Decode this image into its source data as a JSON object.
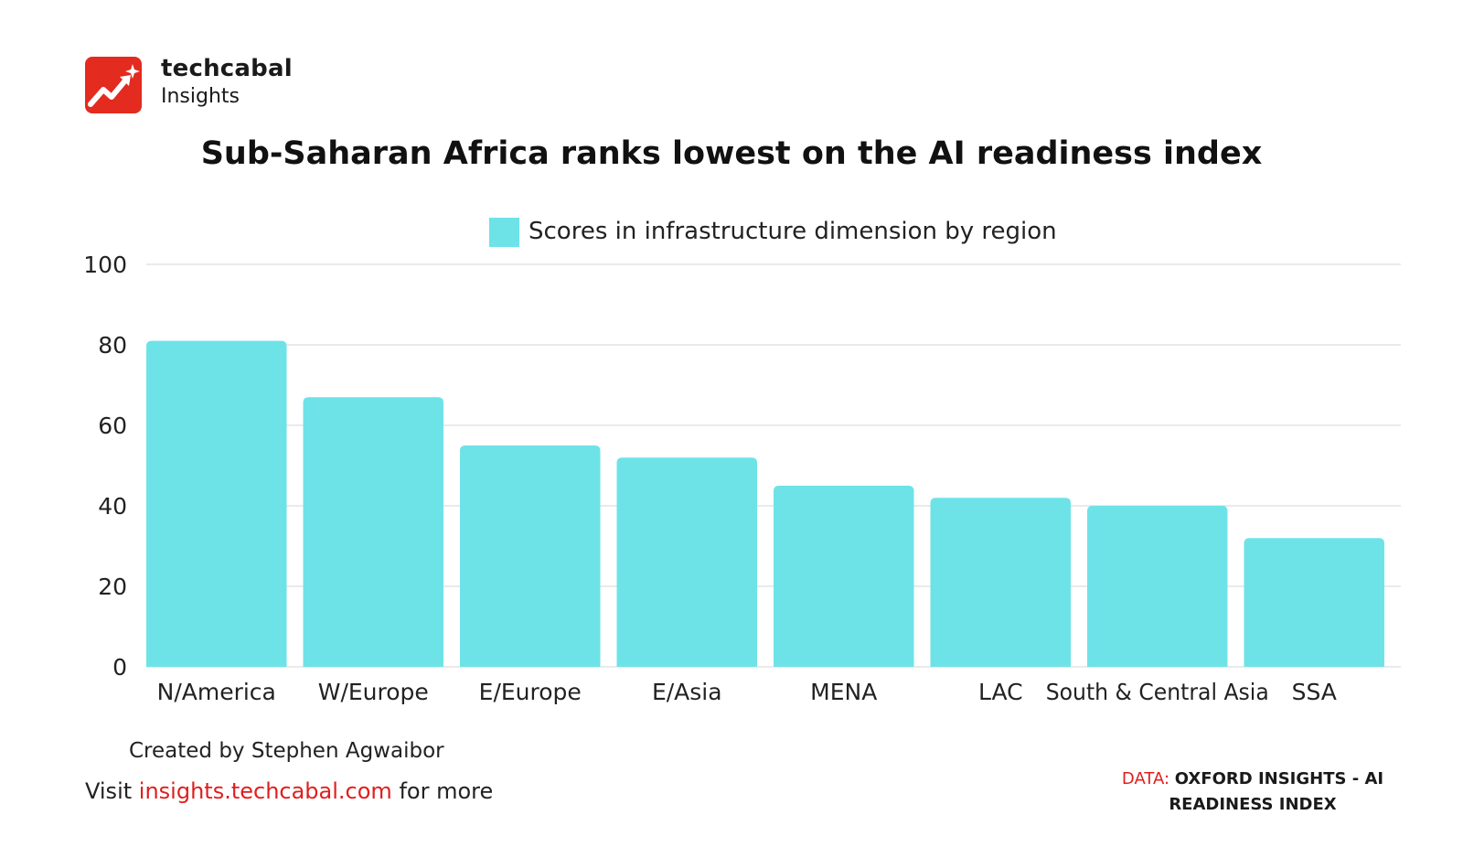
{
  "brand": {
    "name": "techcabal",
    "sub": "Insights",
    "accent": "#e32b1f"
  },
  "chart_data": {
    "type": "bar",
    "title": "Sub-Saharan Africa ranks lowest on the AI readiness index",
    "categories": [
      "N/America",
      "W/Europe",
      "E/Europe",
      "E/Asia",
      "MENA",
      "LAC",
      "South & Central Asia",
      "SSA"
    ],
    "series": [
      {
        "name": "Scores in infrastructure dimension by region",
        "values": [
          81,
          67,
          55,
          52,
          45,
          42,
          40,
          32
        ],
        "color": "#6de3e8"
      }
    ],
    "ylim": [
      0,
      100
    ],
    "yticks": [
      "0",
      "20",
      "40",
      "60",
      "80",
      "100"
    ],
    "xlabel": "",
    "ylabel": "",
    "grid": true,
    "legend": "top-center"
  },
  "footer": {
    "credit": "Created by Stephen Agwaibor",
    "visit_prefix": "Visit ",
    "visit_link": "insights.techcabal.com",
    "visit_suffix": " for more",
    "source_label": "DATA: ",
    "source_text": "OXFORD INSIGHTS - AI READINESS INDEX"
  }
}
